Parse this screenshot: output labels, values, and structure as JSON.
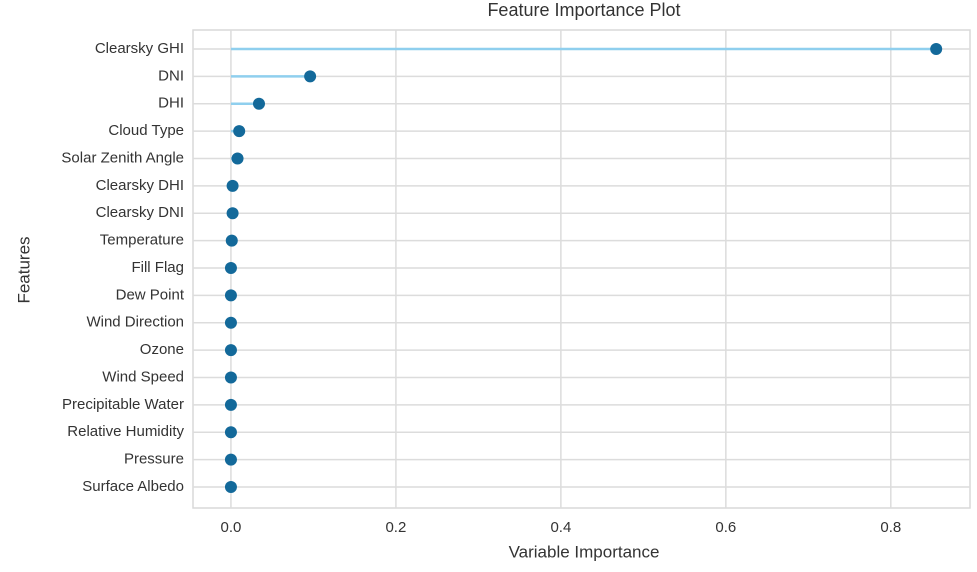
{
  "chart_data": {
    "type": "lollipop",
    "title": "Feature Importance Plot",
    "x_label": "Variable Importance",
    "y_label": "Features",
    "categories": [
      "Clearsky GHI",
      "DNI",
      "DHI",
      "Cloud Type",
      "Solar Zenith Angle",
      "Clearsky DHI",
      "Clearsky DNI",
      "Temperature",
      "Fill Flag",
      "Dew Point",
      "Wind Direction",
      "Ozone",
      "Wind Speed",
      "Precipitable Water",
      "Relative Humidity",
      "Pressure",
      "Surface Albedo"
    ],
    "values": [
      0.855,
      0.096,
      0.034,
      0.01,
      0.008,
      0.002,
      0.002,
      0.001,
      0,
      0,
      0,
      0,
      0,
      0,
      0,
      0,
      0
    ],
    "xlim": [
      -0.046,
      0.896
    ],
    "xticks": [
      {
        "value": 0,
        "label": "0.0"
      },
      0.2,
      0.4,
      0.6,
      0.8
    ],
    "grid": true,
    "line_color": "#8fcfee",
    "marker_color": "#13699a"
  }
}
